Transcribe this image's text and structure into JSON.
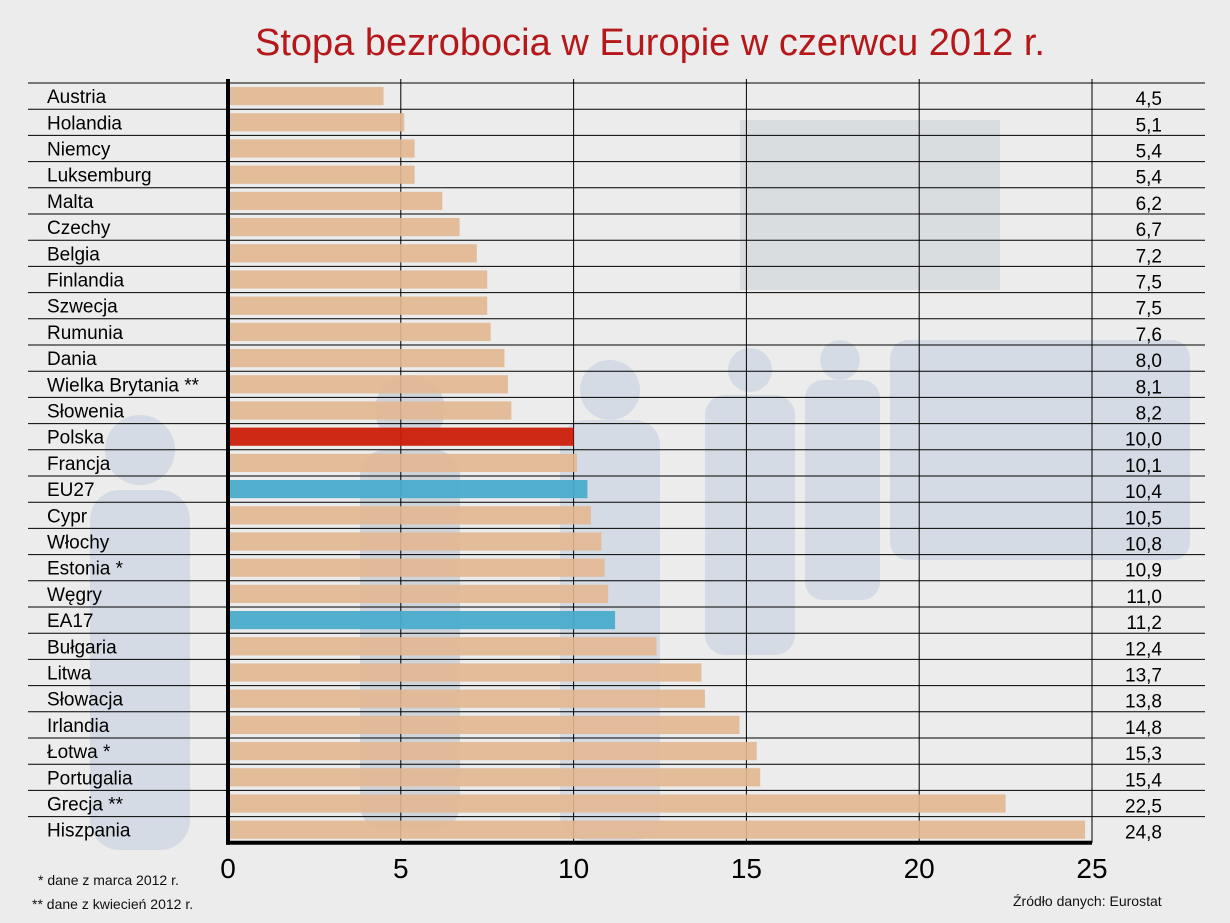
{
  "chart_data": {
    "type": "bar",
    "orientation": "horizontal",
    "title": "Stopa bezrobocia w Europie w czerwcu 2012 r.",
    "categories": [
      "Austria",
      "Holandia",
      "Niemcy",
      "Luksemburg",
      "Malta",
      "Czechy",
      "Belgia",
      "Finlandia",
      "Szwecja",
      "Rumunia",
      "Dania",
      "Wielka Brytania **",
      "Słowenia",
      "Polska",
      "Francja",
      "EU27",
      "Cypr",
      "Włochy",
      "Estonia *",
      "Węgry",
      "EA17",
      "Bułgaria",
      "Litwa",
      "Słowacja",
      "Irlandia",
      "Łotwa *",
      "Portugalia",
      "Grecja **",
      "Hiszpania"
    ],
    "values": [
      4.5,
      5.1,
      5.4,
      5.4,
      6.2,
      6.7,
      7.2,
      7.5,
      7.5,
      7.6,
      8.0,
      8.1,
      8.2,
      10.0,
      10.1,
      10.4,
      10.5,
      10.8,
      10.9,
      11.0,
      11.2,
      12.4,
      13.7,
      13.8,
      14.8,
      15.3,
      15.4,
      22.5,
      24.8
    ],
    "value_labels": [
      "4,5",
      "5,1",
      "5,4",
      "5,4",
      "6,2",
      "6,7",
      "7,2",
      "7,5",
      "7,5",
      "7,6",
      "8,0",
      "8,1",
      "8,2",
      "10,0",
      "10,1",
      "10,4",
      "10,5",
      "10,8",
      "10,9",
      "11,0",
      "11,2",
      "12,4",
      "13,7",
      "13,8",
      "14,8",
      "15,3",
      "15,4",
      "22,5",
      "24,8"
    ],
    "highlight": {
      "Polska": "#cc1f0a",
      "EU27": "#4aaccb",
      "EA17": "#4aaccb"
    },
    "bar_color": "#e2b791",
    "xlim": [
      0,
      25
    ],
    "xticks": [
      "0",
      "5",
      "10",
      "15",
      "20",
      "25"
    ],
    "xtick_values": [
      0,
      5,
      10,
      15,
      20,
      25
    ],
    "grid": true,
    "xlabel": "",
    "ylabel": ""
  },
  "footnotes": {
    "note1": "* dane z marca 2012 r.",
    "note2": "** dane z kwiecień 2012 r.",
    "source": "Źródło danych: Eurostat"
  }
}
